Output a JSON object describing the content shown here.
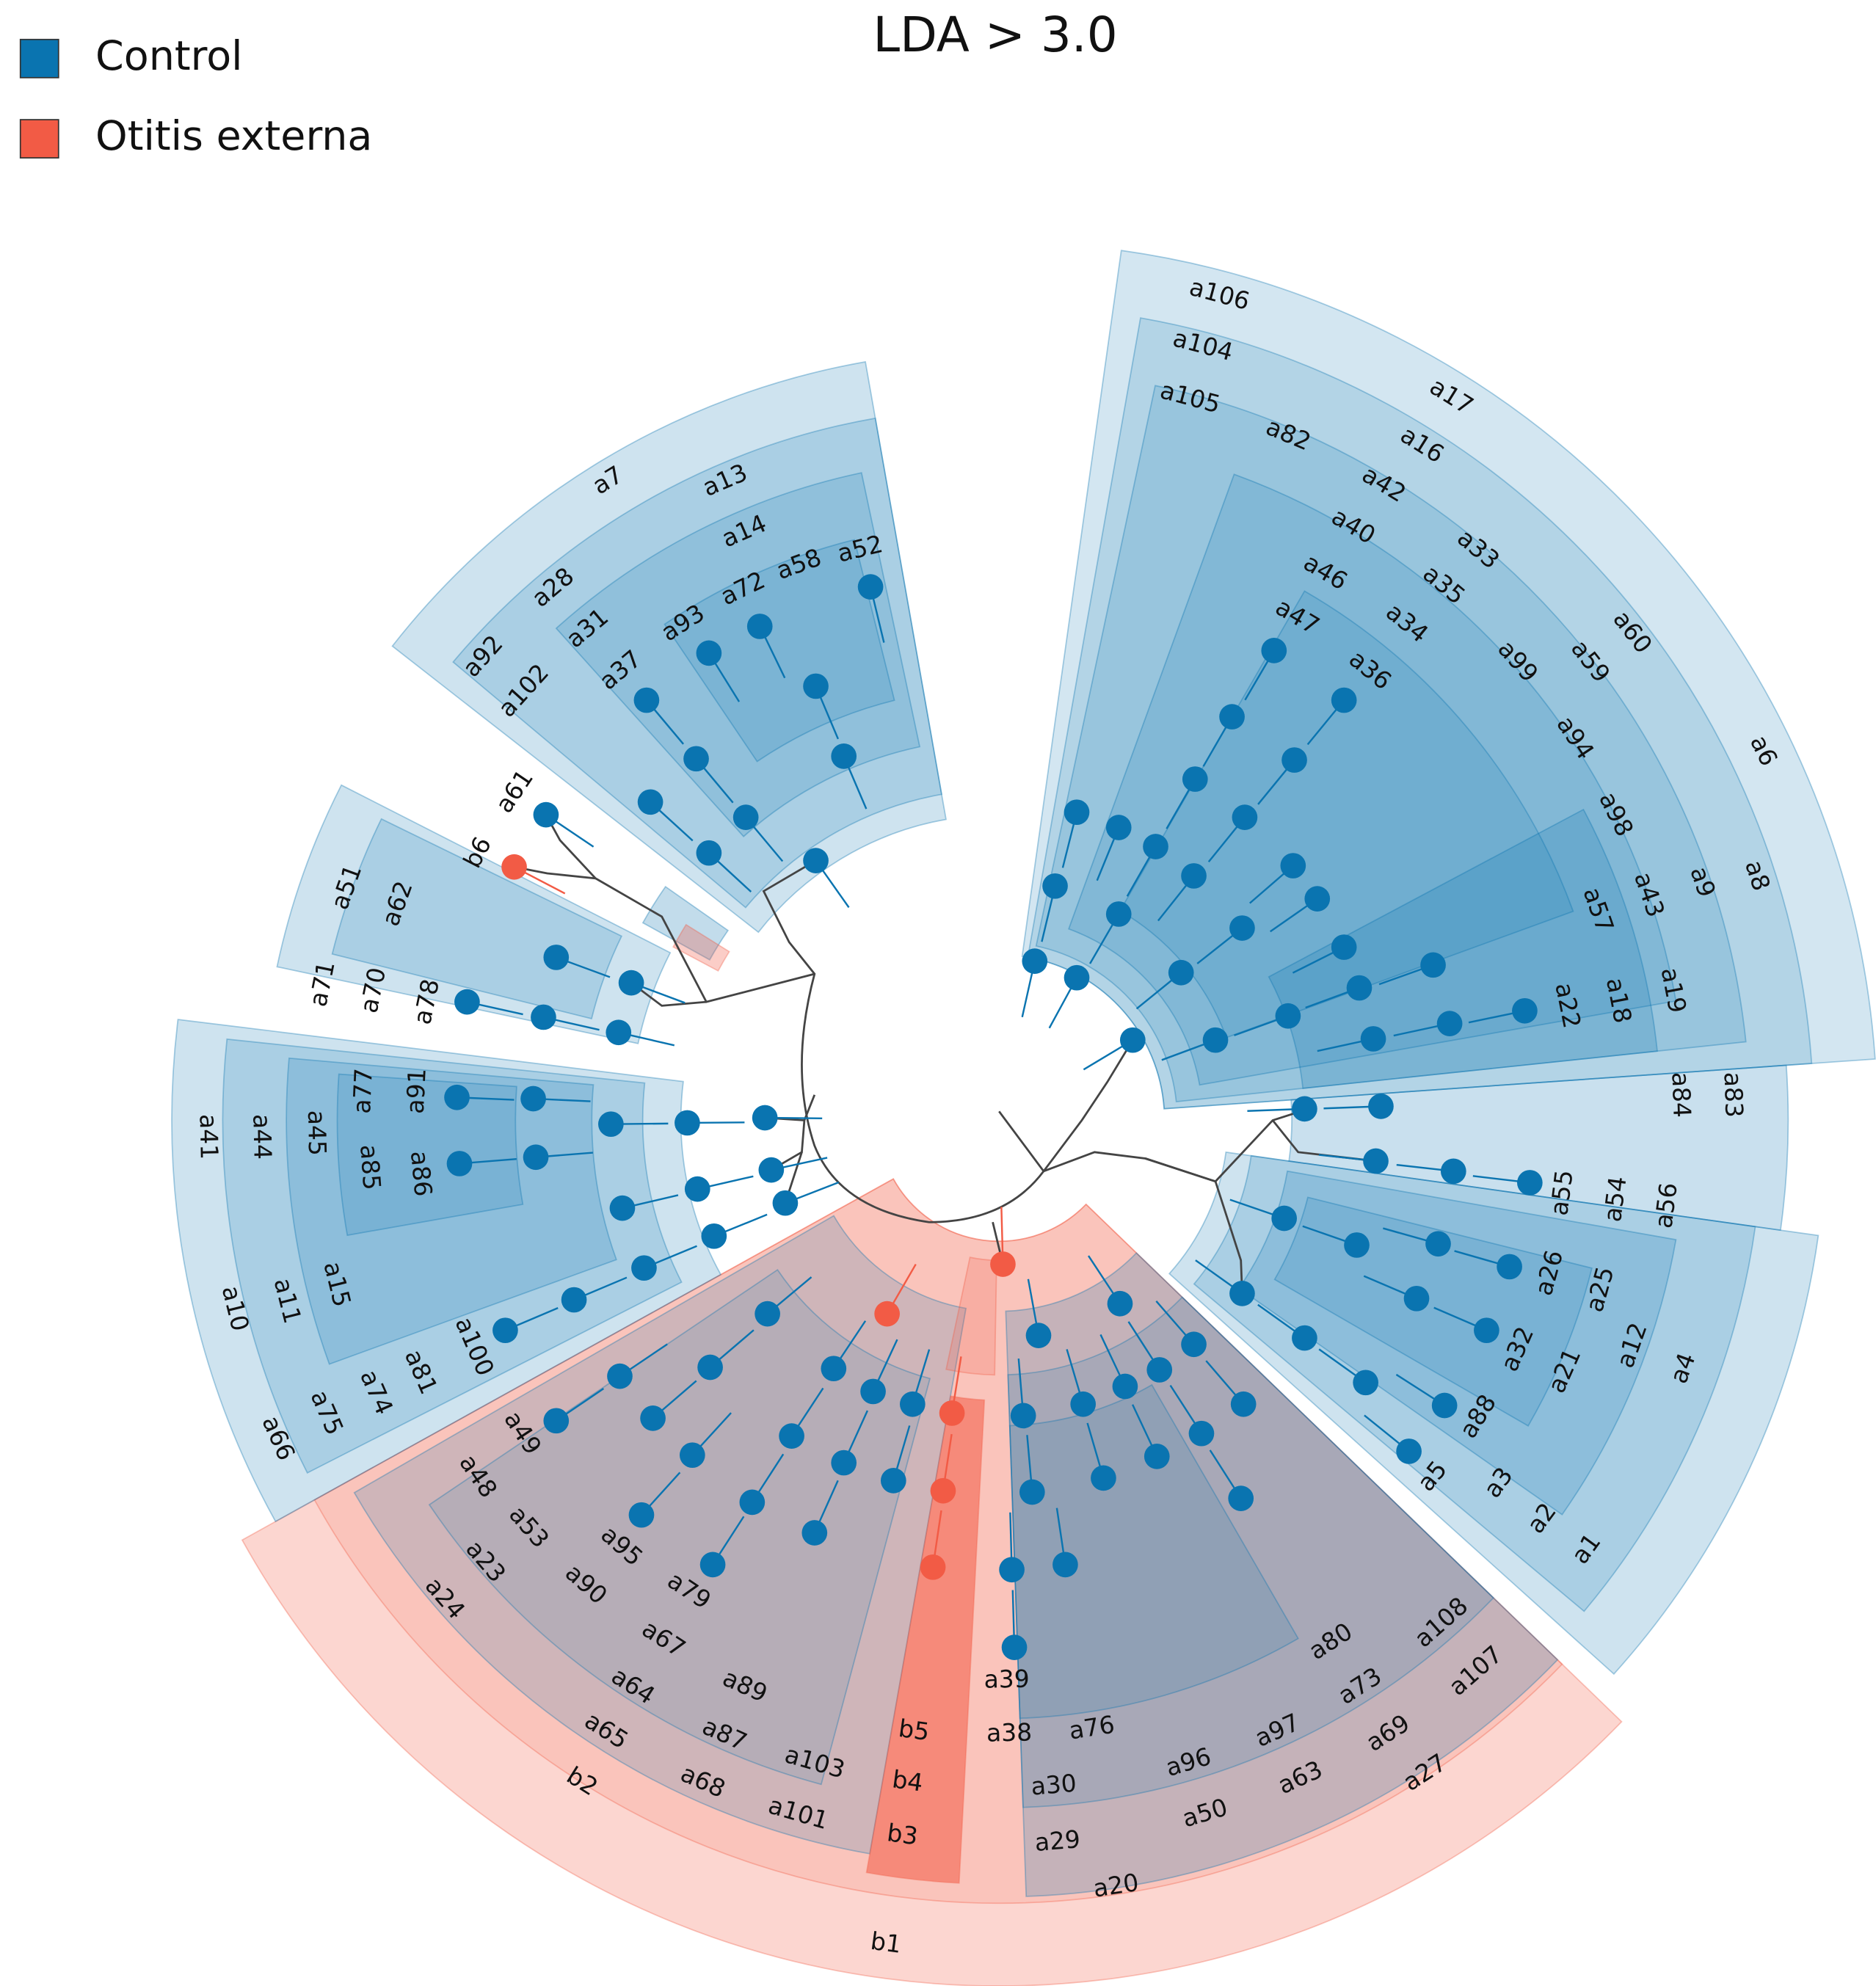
{
  "title": "LDA > 3.0",
  "legend": [
    {
      "label": "Control",
      "color": "#0a74b0"
    },
    {
      "label": "Otitis externa",
      "color": "#f25b45"
    }
  ],
  "clades": [
    "a7",
    "a13",
    "a14",
    "a58",
    "a52",
    "a72",
    "a93",
    "a28",
    "a31",
    "a37",
    "a92",
    "a102",
    "a61",
    "b6",
    "a51",
    "a62",
    "a71",
    "a70",
    "a78",
    "a41",
    "a44",
    "a45",
    "a77",
    "a91",
    "a85",
    "a86",
    "a10",
    "a11",
    "a15",
    "a100",
    "a81",
    "a74",
    "a75",
    "a66",
    "a49",
    "a48",
    "a53",
    "a23",
    "a24",
    "a95",
    "a90",
    "a79",
    "a67",
    "a64",
    "a89",
    "a65",
    "a87",
    "a68",
    "a103",
    "a101",
    "b2",
    "b5",
    "b4",
    "b3",
    "b1",
    "a39",
    "a38",
    "a76",
    "a30",
    "a29",
    "a20",
    "a96",
    "a50",
    "a97",
    "a63",
    "a80",
    "a73",
    "a69",
    "a108",
    "a107",
    "a27",
    "a5",
    "a3",
    "a2",
    "a1",
    "a88",
    "a32",
    "a21",
    "a12",
    "a4",
    "a26",
    "a25",
    "a55",
    "a54",
    "a56",
    "a84",
    "a83",
    "a22",
    "a18",
    "a19",
    "a57",
    "a43",
    "a9",
    "a8",
    "a98",
    "a6",
    "a94",
    "a59",
    "a60",
    "a99",
    "a36",
    "a34",
    "a47",
    "a46",
    "a35",
    "a40",
    "a33",
    "a42",
    "a16",
    "a82",
    "a17",
    "a105",
    "a104",
    "a106"
  ]
}
